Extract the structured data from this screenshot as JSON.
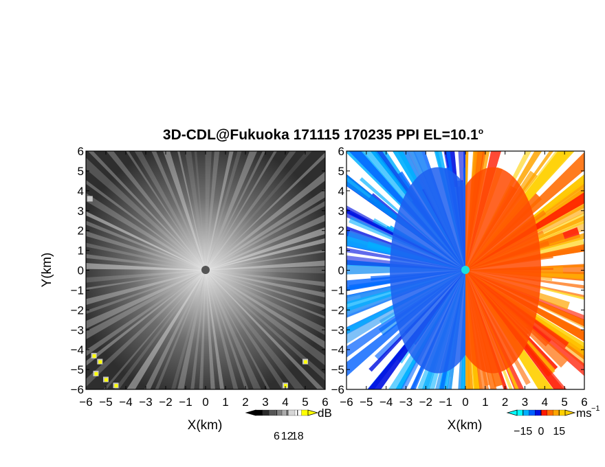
{
  "title": {
    "main": "3D-CDL@Fukuoka 171115 170235 PPI EL=10.1",
    "degree_mark": "o"
  },
  "chart_data": [
    {
      "type": "heatmap",
      "panel": "left",
      "quantity": "received power",
      "xlabel": "X(km)",
      "ylabel": "Y(km)",
      "xlim": [
        -6,
        6
      ],
      "ylim": [
        -6,
        6
      ],
      "xticks": [
        "−6",
        "−5",
        "−4",
        "−3",
        "−2",
        "−1",
        "0",
        "1",
        "2",
        "3",
        "4",
        "5",
        "6"
      ],
      "yticks": [
        "6",
        "5",
        "4",
        "3",
        "2",
        "1",
        "0",
        "−1",
        "−2",
        "−3",
        "−4",
        "−5",
        "−6"
      ],
      "grid": false,
      "radar_center": [
        0,
        0
      ],
      "colorbar": {
        "unit": "dB",
        "ticks": [
          "6",
          "12",
          "18"
        ],
        "tick_values": [
          6,
          12,
          18
        ],
        "colors": [
          "#000000",
          "#2a2a2a",
          "#555555",
          "#808080",
          "#aaaaaa",
          "#d5d5d5",
          "#ffffff",
          "#ffff00"
        ]
      },
      "bright_spots": [
        [
          -5.8,
          3.6
        ],
        [
          -5.3,
          -4.6
        ],
        [
          -5.5,
          -5.2
        ],
        [
          -5.0,
          -5.5
        ],
        [
          -4.5,
          -5.8
        ],
        [
          -5.6,
          -4.3
        ],
        [
          4.0,
          -5.8
        ],
        [
          5.0,
          -4.6
        ]
      ]
    },
    {
      "type": "heatmap",
      "panel": "right",
      "quantity": "Doppler velocity",
      "xlabel": "X(km)",
      "ylabel": "",
      "xlim": [
        -6,
        6
      ],
      "ylim": [
        -6,
        6
      ],
      "xticks": [
        "−6",
        "−5",
        "−4",
        "−3",
        "−2",
        "−1",
        "0",
        "1",
        "2",
        "3",
        "4",
        "5",
        "6"
      ],
      "yticks": [
        "6",
        "5",
        "4",
        "3",
        "2",
        "1",
        "0",
        "−1",
        "−2",
        "−3",
        "−4",
        "−5",
        "−6"
      ],
      "grid": false,
      "radar_center": [
        0,
        0
      ],
      "colorbar": {
        "unit": "ms",
        "unit_exponent": "−1",
        "ticks": [
          "−15",
          "0",
          "15"
        ],
        "tick_values": [
          -15,
          0,
          15
        ],
        "colors": [
          "#00ffff",
          "#00b0ff",
          "#0060ff",
          "#0010e0",
          "#ff1a00",
          "#ff6a00",
          "#ffa500",
          "#ffd000"
        ]
      },
      "velocity_pattern": "negative (blue) for X<0, positive (red/orange) for X>0",
      "velocity_range": [
        -15,
        15
      ]
    }
  ]
}
